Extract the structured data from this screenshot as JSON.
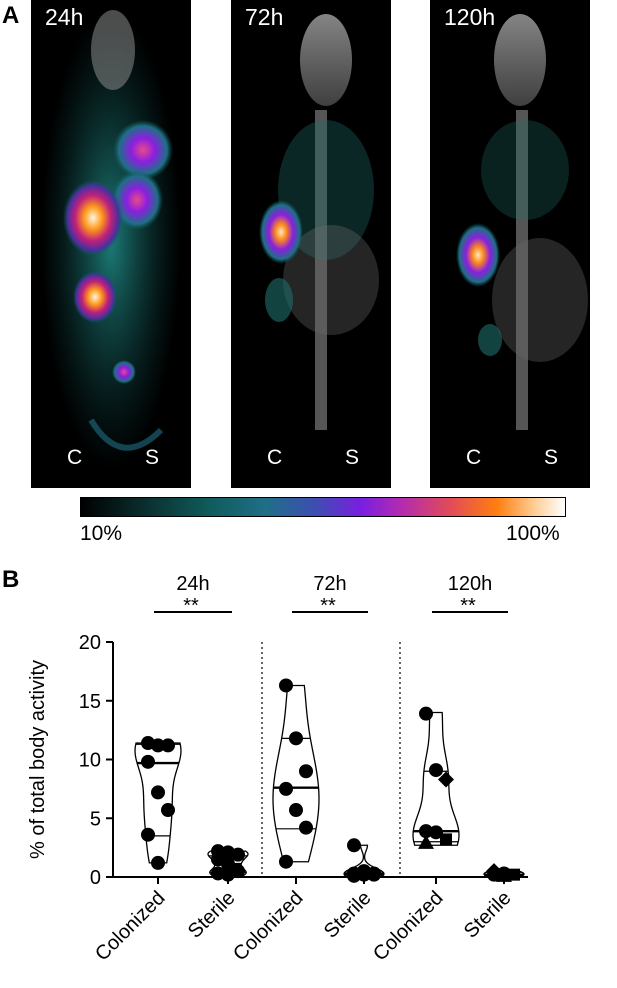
{
  "figure": {
    "panel_a_label": "A",
    "panel_b_label": "B",
    "images": [
      {
        "timepoint": "24h",
        "left_label": "C",
        "right_label": "S"
      },
      {
        "timepoint": "72h",
        "left_label": "C",
        "right_label": "S"
      },
      {
        "timepoint": "120h",
        "left_label": "C",
        "right_label": "S"
      }
    ],
    "colorbar": {
      "min_label": "10%",
      "max_label": "100%",
      "colors": [
        "#000000",
        "#0f5a5a",
        "#7a1fe0",
        "#ff7f10",
        "#ffffff"
      ]
    }
  },
  "chart_data": {
    "type": "violin",
    "ylabel": "% of total body activity",
    "ylim": [
      0,
      20
    ],
    "yticks": [
      "0",
      "5",
      "10",
      "15",
      "20"
    ],
    "groups": [
      {
        "title": "24h",
        "significance": "**",
        "categories": [
          {
            "label": "Colonized",
            "median": 9.7,
            "q1": 3.5,
            "q3": 11.3,
            "min": 1.2,
            "max": 11.4,
            "points": [
              11.4,
              11.2,
              11.2,
              9.8,
              7.2,
              5.7,
              3.6,
              1.2
            ]
          },
          {
            "label": "Sterile",
            "median": 1.1,
            "q1": 0.4,
            "q3": 1.8,
            "min": 0.1,
            "max": 2.2,
            "points": [
              2.2,
              2.1,
              1.9,
              1.5,
              1.1,
              0.5,
              0.3,
              0.2
            ]
          }
        ]
      },
      {
        "title": "72h",
        "significance": "**",
        "categories": [
          {
            "label": "Colonized",
            "median": 7.6,
            "q1": 4.1,
            "q3": 11.8,
            "min": 1.3,
            "max": 16.3,
            "points": [
              16.3,
              11.8,
              9.0,
              7.5,
              5.7,
              4.2,
              1.3
            ]
          },
          {
            "label": "Sterile",
            "median": 0.3,
            "q1": 0.2,
            "q3": 0.5,
            "min": 0.1,
            "max": 2.7,
            "points": [
              2.7,
              0.5,
              0.3,
              0.3,
              0.2,
              0.2,
              0.1
            ]
          }
        ]
      },
      {
        "title": "120h",
        "significance": "**",
        "categories": [
          {
            "label": "Colonized",
            "median": 3.9,
            "q1": 3.0,
            "q3": 9.0,
            "min": 2.7,
            "max": 14.0,
            "points": [
              {
                "value": 13.9,
                "shape": "circle"
              },
              {
                "value": 9.1,
                "shape": "circle"
              },
              {
                "value": 8.3,
                "shape": "diamond"
              },
              {
                "value": 3.9,
                "shape": "circle"
              },
              {
                "value": 3.8,
                "shape": "circle"
              },
              {
                "value": 3.2,
                "shape": "square"
              },
              {
                "value": 2.9,
                "shape": "triangle"
              }
            ]
          },
          {
            "label": "Sterile",
            "median": 0.2,
            "q1": 0.1,
            "q3": 0.4,
            "min": 0.05,
            "max": 0.5,
            "points": [
              {
                "value": 0.5,
                "shape": "diamond"
              },
              {
                "value": 0.3,
                "shape": "circle"
              },
              {
                "value": 0.2,
                "shape": "square"
              },
              {
                "value": 0.2,
                "shape": "circle"
              },
              {
                "value": 0.1,
                "shape": "triangle"
              }
            ]
          }
        ]
      }
    ]
  }
}
